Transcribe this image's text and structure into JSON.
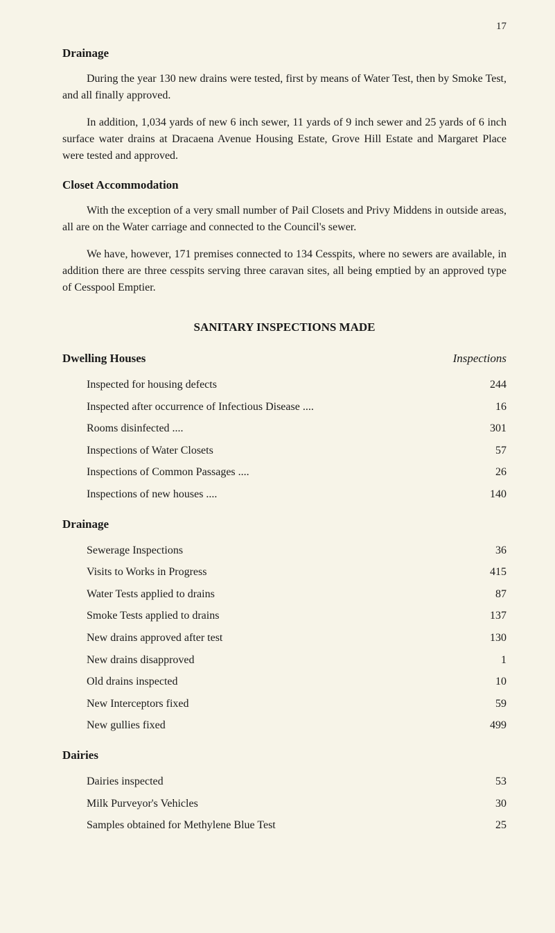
{
  "page_number": "17",
  "heading1": "Drainage",
  "para1": "During the year 130 new drains were tested, first by means of Water Test, then by Smoke Test, and all finally approved.",
  "para2": "In addition, 1,034 yards of new 6 inch sewer, 11 yards of 9 inch sewer and 25 yards of 6 inch surface water drains at Dracaena Avenue Housing Estate, Grove Hill Estate and Margaret Place were tested and approved.",
  "heading2": "Closet Accommodation",
  "para3": "With the exception of a very small number of Pail Closets and Privy Middens in outside areas, all are on the Water carriage and connected to the Council's sewer.",
  "para4": "We have, however, 171 premises connected to 134 Cesspits, where no sewers are available, in addition there are three cesspits serving three caravan sites, all being emptied by an approved type of Cesspool Emptier.",
  "section_title": "SANITARY INSPECTIONS MADE",
  "dwelling_header_left": "Dwelling Houses",
  "dwelling_header_right": "Inspections",
  "dwelling_rows": [
    {
      "label": "Inspected for housing defects",
      "value": "244"
    },
    {
      "label": "Inspected after occurrence of Infectious Disease ....",
      "value": "16"
    },
    {
      "label": "Rooms disinfected ....",
      "value": "301"
    },
    {
      "label": "Inspections of Water Closets",
      "value": "57"
    },
    {
      "label": "Inspections of Common Passages ....",
      "value": "26"
    },
    {
      "label": "Inspections of new houses ....",
      "value": "140"
    }
  ],
  "drainage_header": "Drainage",
  "drainage_rows": [
    {
      "label": "Sewerage Inspections",
      "value": "36"
    },
    {
      "label": "Visits to Works in Progress",
      "value": "415"
    },
    {
      "label": "Water Tests applied to drains",
      "value": "87"
    },
    {
      "label": "Smoke Tests applied to drains",
      "value": "137"
    },
    {
      "label": "New drains approved after test",
      "value": "130"
    },
    {
      "label": "New drains disapproved",
      "value": "1"
    },
    {
      "label": "Old drains inspected",
      "value": "10"
    },
    {
      "label": "New Interceptors fixed",
      "value": "59"
    },
    {
      "label": "New gullies fixed",
      "value": "499"
    }
  ],
  "dairies_header": "Dairies",
  "dairies_rows": [
    {
      "label": "Dairies inspected",
      "value": "53"
    },
    {
      "label": "Milk Purveyor's Vehicles",
      "value": "30"
    },
    {
      "label": "Samples obtained for Methylene Blue Test",
      "value": "25"
    }
  ]
}
